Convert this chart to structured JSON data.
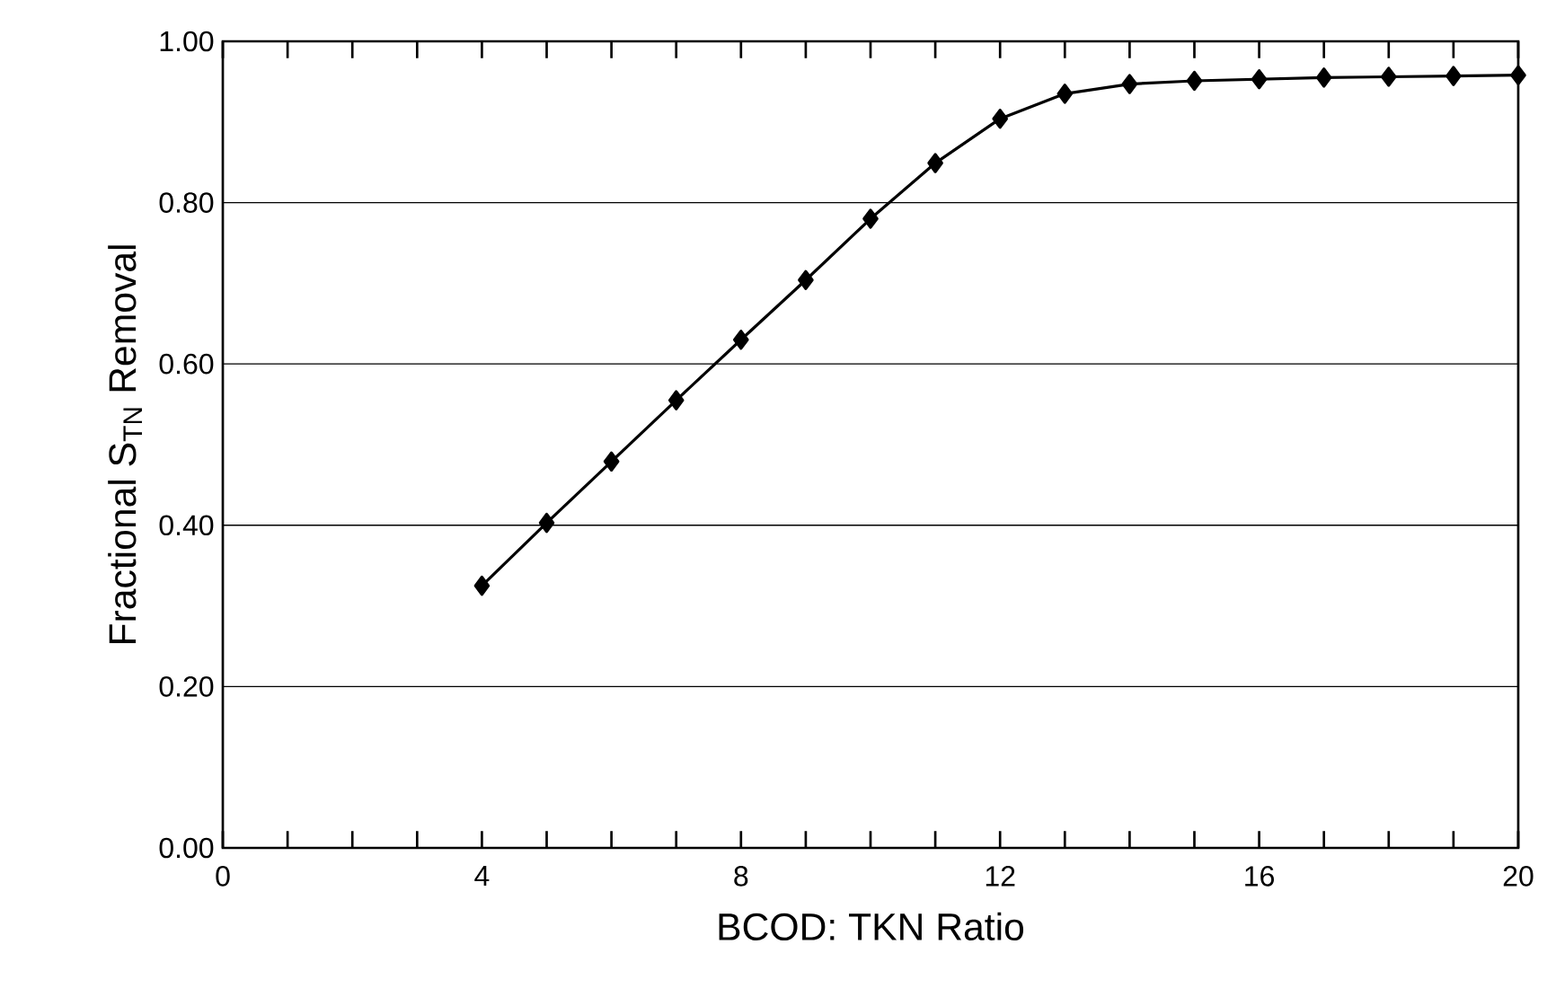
{
  "chart_data": {
    "type": "line",
    "xlabel": "BCOD: TKN Ratio",
    "ylabel": "Fractional S$_{TN}$ Removal",
    "x": [
      4,
      5,
      6,
      7,
      8,
      9,
      10,
      11,
      12,
      13,
      14,
      15,
      16,
      17,
      18,
      19,
      20
    ],
    "series": [
      {
        "color": "#000000",
        "values": [
          0.325,
          0.403,
          0.479,
          0.555,
          0.63,
          0.704,
          0.78,
          0.849,
          0.904,
          0.935,
          0.947,
          0.951,
          0.953,
          0.955,
          0.956,
          0.957,
          0.958
        ]
      }
    ],
    "xlim": [
      0,
      20
    ],
    "xticks": [
      0,
      4,
      8,
      12,
      16,
      20
    ],
    "ylim": [
      0,
      1
    ],
    "yticks": [
      {
        "value": 0,
        "label": "0.00"
      },
      {
        "value": 0.2,
        "label": "0.20"
      },
      {
        "value": 0.4,
        "label": "0.40"
      },
      {
        "value": 0.6,
        "label": "0.60"
      },
      {
        "value": 0.8,
        "label": "0.80"
      },
      {
        "value": 1,
        "label": "1.00"
      }
    ],
    "grid": "y",
    "marker": "diamond",
    "line_style": "solid"
  }
}
